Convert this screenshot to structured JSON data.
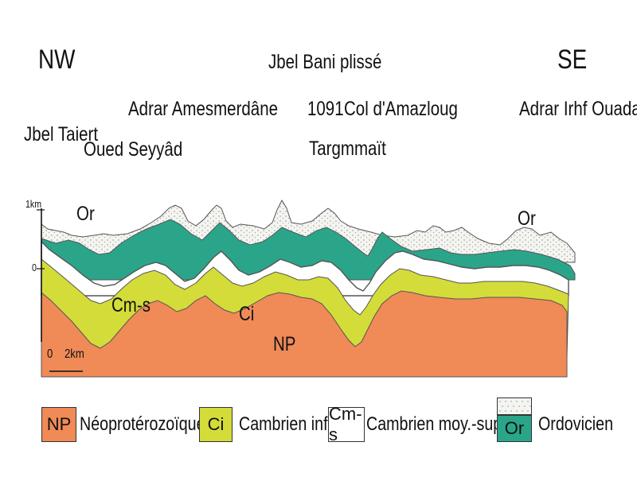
{
  "orientation": {
    "left": "NW",
    "right": "SE"
  },
  "title": "Jbel Bani plissé",
  "places": {
    "jbel_taiert": "Jbel Taiert",
    "oued_seyyad": "Oued Seyyâd",
    "adrar_amesmerdane": "Adrar Amesmerdâne",
    "elevation_1091": "1091",
    "col_amazloug": "Col d'Amazloug",
    "targmmait": "Targmmaït",
    "adrar_irhf_ouadar": "Adrar Irhf Ouadar"
  },
  "scale": {
    "vertical_top": "1km",
    "vertical_zero": "0",
    "horizontal_start": "0",
    "horizontal_end": "2km"
  },
  "unit_labels": {
    "or_left": "Or",
    "or_right": "Or",
    "cm_s": "Cm-s",
    "ci": "Ci",
    "np": "NP"
  },
  "legend": [
    {
      "code": "NP",
      "name": "Néoprotérozoïque",
      "color": "#f08a57"
    },
    {
      "code": "Ci",
      "name": "Cambrien inf.",
      "color": "#d4dc3a"
    },
    {
      "code": "Cm-s",
      "name": "Cambrien moy.-sup.",
      "color": "#ffffff"
    },
    {
      "code": "Or",
      "name": "Ordovicien",
      "color": "#2aa58a"
    }
  ],
  "colors": {
    "np": "#f08a57",
    "ci": "#d4dc3a",
    "cms": "#ffffff",
    "or": "#2aa58a",
    "or_top": "#f4f4f0",
    "outline": "#555555"
  }
}
